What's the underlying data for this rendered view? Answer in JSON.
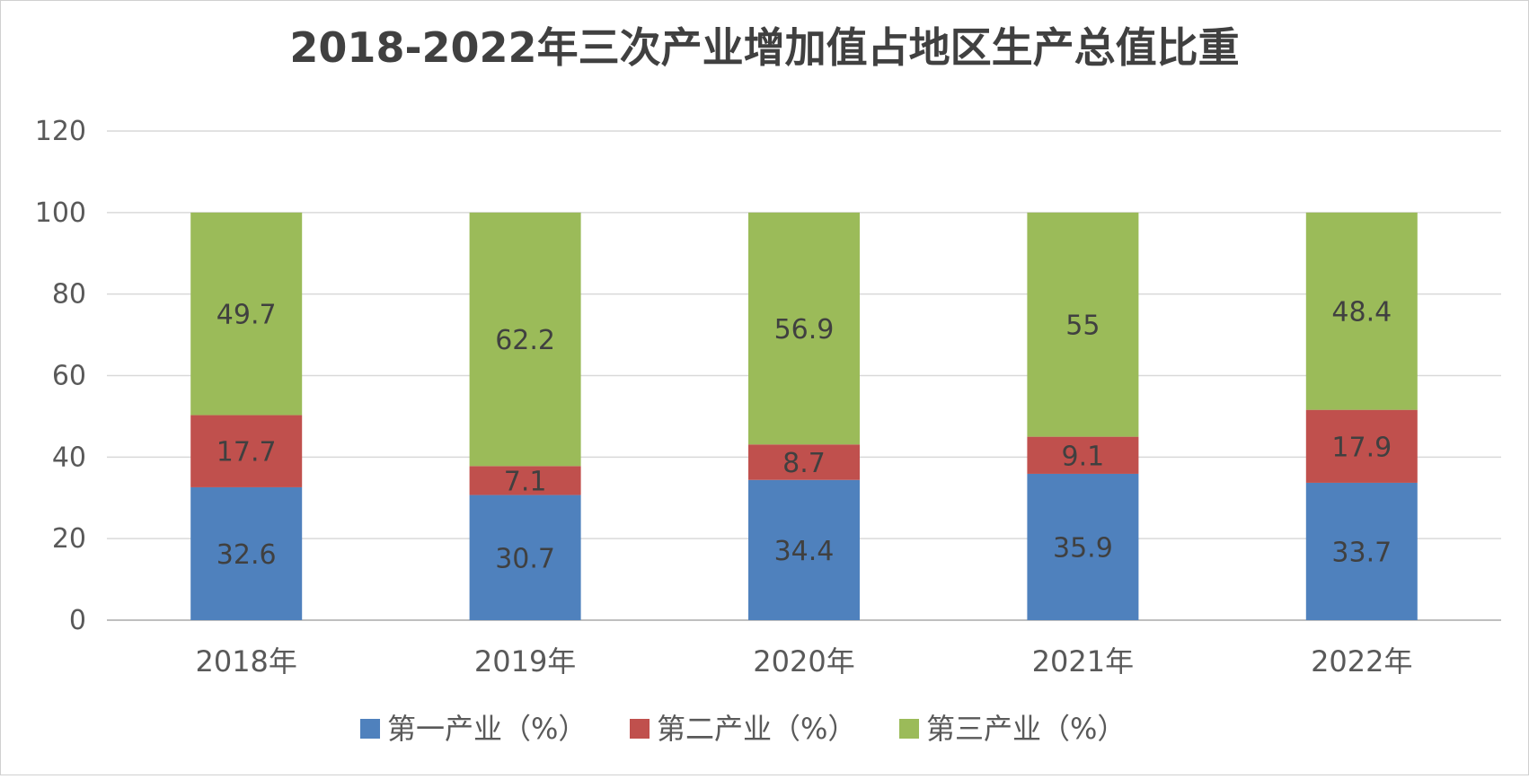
{
  "chart_data": {
    "type": "bar",
    "stacked": true,
    "title": "2018-2022年三次产业增加值占地区生产总值比重",
    "categories": [
      "2018年",
      "2019年",
      "2020年",
      "2021年",
      "2022年"
    ],
    "series": [
      {
        "name": "第一产业（%）",
        "values": [
          32.6,
          30.7,
          34.4,
          35.9,
          33.7
        ],
        "color": "#4f81bd"
      },
      {
        "name": "第二产业（%）",
        "values": [
          17.7,
          7.1,
          8.7,
          9.1,
          17.9
        ],
        "color": "#c0504d"
      },
      {
        "name": "第三产业（%）",
        "values": [
          49.7,
          62.2,
          56.9,
          55,
          48.4
        ],
        "color": "#9bbb59"
      }
    ],
    "ylim": [
      0,
      120
    ],
    "yticks": [
      0,
      20,
      40,
      60,
      80,
      100,
      120
    ],
    "grid": true,
    "legend_position": "bottom"
  }
}
